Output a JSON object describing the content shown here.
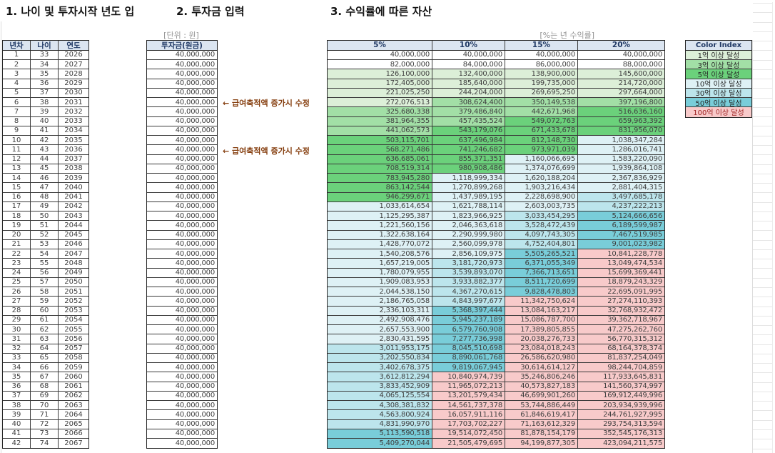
{
  "titles": {
    "t1": "1. 나이 및 투자시작 년도 입",
    "t2": "2. 투자금 입력",
    "t3": "3. 수익률에 따른 자산"
  },
  "labels": {
    "unit": "[단위 : 원]",
    "pct": "[%는 년 수익률]"
  },
  "left_table": {
    "headers": [
      "년차",
      "나이",
      "연도"
    ],
    "rows": [
      [
        "1",
        "33",
        "2026"
      ],
      [
        "2",
        "34",
        "2027"
      ],
      [
        "3",
        "35",
        "2028"
      ],
      [
        "4",
        "36",
        "2029"
      ],
      [
        "5",
        "37",
        "2030"
      ],
      [
        "6",
        "38",
        "2031"
      ],
      [
        "7",
        "39",
        "2032"
      ],
      [
        "8",
        "40",
        "2033"
      ],
      [
        "9",
        "41",
        "2034"
      ],
      [
        "10",
        "42",
        "2035"
      ],
      [
        "11",
        "43",
        "2036"
      ],
      [
        "12",
        "44",
        "2037"
      ],
      [
        "13",
        "45",
        "2038"
      ],
      [
        "14",
        "46",
        "2039"
      ],
      [
        "15",
        "47",
        "2040"
      ],
      [
        "16",
        "48",
        "2041"
      ],
      [
        "17",
        "49",
        "2042"
      ],
      [
        "18",
        "50",
        "2043"
      ],
      [
        "19",
        "51",
        "2044"
      ],
      [
        "20",
        "52",
        "2045"
      ],
      [
        "21",
        "53",
        "2046"
      ],
      [
        "22",
        "54",
        "2047"
      ],
      [
        "23",
        "55",
        "2048"
      ],
      [
        "24",
        "56",
        "2049"
      ],
      [
        "25",
        "57",
        "2050"
      ],
      [
        "26",
        "58",
        "2051"
      ],
      [
        "27",
        "59",
        "2052"
      ],
      [
        "28",
        "60",
        "2053"
      ],
      [
        "29",
        "61",
        "2054"
      ],
      [
        "30",
        "62",
        "2055"
      ],
      [
        "31",
        "63",
        "2056"
      ],
      [
        "32",
        "64",
        "2057"
      ],
      [
        "33",
        "65",
        "2058"
      ],
      [
        "34",
        "66",
        "2059"
      ],
      [
        "35",
        "67",
        "2060"
      ],
      [
        "36",
        "68",
        "2061"
      ],
      [
        "37",
        "69",
        "2062"
      ],
      [
        "38",
        "70",
        "2063"
      ],
      [
        "39",
        "71",
        "2064"
      ],
      [
        "40",
        "72",
        "2065"
      ],
      [
        "41",
        "73",
        "2066"
      ],
      [
        "42",
        "74",
        "2067"
      ]
    ]
  },
  "invest_table": {
    "header": "투자금(원금)",
    "value": "40,000,000",
    "row_count": 42
  },
  "annotations": [
    {
      "text": "← 급여축적액 증가시 수정",
      "row": 6
    },
    {
      "text": "← 급여축적액 증가시 수정",
      "row": 11
    }
  ],
  "asset_table": {
    "headers": [
      "5%",
      "10%",
      "15%",
      "20%"
    ],
    "rows": [
      [
        "40,000,000",
        "40,000,000",
        "40,000,000",
        "40,000,000"
      ],
      [
        "82,000,000",
        "84,000,000",
        "86,000,000",
        "88,000,000"
      ],
      [
        "126,100,000",
        "132,400,000",
        "138,900,000",
        "145,600,000"
      ],
      [
        "172,405,000",
        "185,640,000",
        "199,735,000",
        "214,720,000"
      ],
      [
        "221,025,250",
        "244,204,000",
        "269,695,250",
        "297,664,000"
      ],
      [
        "272,076,513",
        "308,624,400",
        "350,149,538",
        "397,196,800"
      ],
      [
        "325,680,338",
        "379,486,840",
        "442,671,968",
        "516,636,160"
      ],
      [
        "381,964,355",
        "457,435,524",
        "549,072,763",
        "659,963,392"
      ],
      [
        "441,062,573",
        "543,179,076",
        "671,433,678",
        "831,956,070"
      ],
      [
        "503,115,701",
        "637,496,984",
        "812,148,730",
        "1,038,347,284"
      ],
      [
        "568,271,486",
        "741,246,682",
        "973,971,039",
        "1,286,016,741"
      ],
      [
        "636,685,061",
        "855,371,351",
        "1,160,066,695",
        "1,583,220,090"
      ],
      [
        "708,519,314",
        "980,908,486",
        "1,374,076,699",
        "1,939,864,108"
      ],
      [
        "783,945,280",
        "1,118,999,334",
        "1,620,188,204",
        "2,367,836,929"
      ],
      [
        "863,142,544",
        "1,270,899,268",
        "1,903,216,434",
        "2,881,404,315"
      ],
      [
        "946,299,671",
        "1,437,989,195",
        "2,228,698,900",
        "3,497,685,178"
      ],
      [
        "1,033,614,654",
        "1,621,788,114",
        "2,603,003,735",
        "4,237,222,213"
      ],
      [
        "1,125,295,387",
        "1,823,966,925",
        "3,033,454,295",
        "5,124,666,656"
      ],
      [
        "1,221,560,156",
        "2,046,363,618",
        "3,528,472,439",
        "6,189,599,987"
      ],
      [
        "1,322,638,164",
        "2,290,999,980",
        "4,097,743,305",
        "7,467,519,985"
      ],
      [
        "1,428,770,072",
        "2,560,099,978",
        "4,752,404,801",
        "9,001,023,982"
      ],
      [
        "1,540,208,576",
        "2,856,109,975",
        "5,505,265,521",
        "10,841,228,778"
      ],
      [
        "1,657,219,005",
        "3,181,720,973",
        "6,371,055,349",
        "13,049,474,534"
      ],
      [
        "1,780,079,955",
        "3,539,893,070",
        "7,366,713,651",
        "15,699,369,441"
      ],
      [
        "1,909,083,953",
        "3,933,882,377",
        "8,511,720,699",
        "18,879,243,329"
      ],
      [
        "2,044,538,150",
        "4,367,270,615",
        "9,828,478,803",
        "22,695,091,995"
      ],
      [
        "2,186,765,058",
        "4,843,997,677",
        "11,342,750,624",
        "27,274,110,393"
      ],
      [
        "2,336,103,311",
        "5,368,397,444",
        "13,084,163,217",
        "32,768,932,472"
      ],
      [
        "2,492,908,476",
        "5,945,237,189",
        "15,086,787,700",
        "39,362,718,967"
      ],
      [
        "2,657,553,900",
        "6,579,760,908",
        "17,389,805,855",
        "47,275,262,760"
      ],
      [
        "2,830,431,595",
        "7,277,736,998",
        "20,038,276,733",
        "56,770,315,312"
      ],
      [
        "3,011,953,175",
        "8,045,510,698",
        "23,084,018,243",
        "68,164,378,374"
      ],
      [
        "3,202,550,834",
        "8,890,061,768",
        "26,586,620,980",
        "81,837,254,049"
      ],
      [
        "3,402,678,375",
        "9,819,067,945",
        "30,614,614,127",
        "98,244,704,859"
      ],
      [
        "3,612,812,294",
        "10,840,974,739",
        "35,246,806,246",
        "117,933,645,831"
      ],
      [
        "3,833,452,909",
        "11,965,072,213",
        "40,573,827,183",
        "141,560,374,997"
      ],
      [
        "4,065,125,554",
        "13,201,579,434",
        "46,699,901,260",
        "169,912,449,996"
      ],
      [
        "4,308,381,832",
        "14,561,737,378",
        "53,744,886,449",
        "203,934,939,996"
      ],
      [
        "4,563,800,924",
        "16,057,911,116",
        "61,846,619,417",
        "244,761,927,995"
      ],
      [
        "4,831,990,970",
        "17,703,702,227",
        "71,163,612,329",
        "293,754,313,594"
      ],
      [
        "5,113,590,518",
        "19,514,072,450",
        "81,878,154,179",
        "352,545,176,313"
      ],
      [
        "5,409,270,044",
        "21,505,479,695",
        "94,199,877,305",
        "423,094,211,575"
      ]
    ]
  },
  "thresholds": [
    {
      "min": 10000000000,
      "color": "#f8caca"
    },
    {
      "min": 5000000000,
      "color": "#79cdd9"
    },
    {
      "min": 3000000000,
      "color": "#bce5ec"
    },
    {
      "min": 1000000000,
      "color": "#def1f5"
    },
    {
      "min": 500000000,
      "color": "#6bd17b"
    },
    {
      "min": 300000000,
      "color": "#a2dfa6"
    },
    {
      "min": 100000000,
      "color": "#dcefd8"
    }
  ],
  "color_index": {
    "header": "Color Index",
    "items": [
      {
        "label": "1억 이상 달성",
        "color": "#dcefd8",
        "text": "#262626"
      },
      {
        "label": "3억 이상 달성",
        "color": "#a2dfa6",
        "text": "#262626"
      },
      {
        "label": "5억 이상 달성",
        "color": "#6bd17b",
        "text": "#262626"
      },
      {
        "label": "10억 이상 달성",
        "color": "#def1f5",
        "text": "#262626"
      },
      {
        "label": "30억 이상 달성",
        "color": "#bce5ec",
        "text": "#262626"
      },
      {
        "label": "50억 이상 달성",
        "color": "#79cdd9",
        "text": "#262626"
      },
      {
        "label": "100억 이상 달성",
        "color": "#f8caca",
        "text": "#9c1f1f"
      }
    ]
  }
}
